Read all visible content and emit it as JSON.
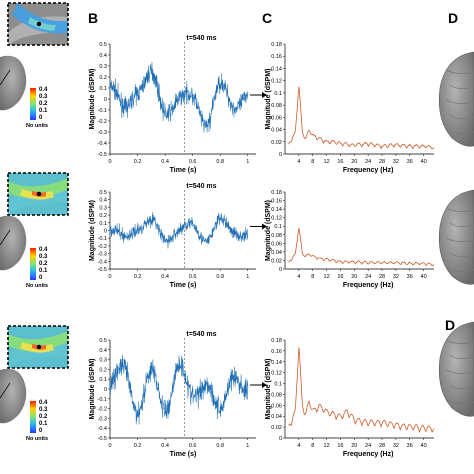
{
  "panel_labels": {
    "B": "B",
    "C": "C",
    "D": "D"
  },
  "colorbar": {
    "ticks": [
      "0.4",
      "0.3",
      "0.2",
      "0.1",
      "0"
    ],
    "units": "No units"
  },
  "time_plots": {
    "ylabel": "Magnitude (dSPM)",
    "xlabel": "Time (s)",
    "xticks": [
      "0",
      "0.2",
      "0.4",
      "0.6",
      "0.8",
      "1"
    ],
    "yticks": [
      "0.5",
      "0.4",
      "0.3",
      "0.2",
      "0.1",
      "0",
      "-0.1",
      "-0.2",
      "-0.3",
      "-0.4",
      "-0.5"
    ],
    "marker_label": "t=540 ms",
    "line_color": "#1f6fb4"
  },
  "freq_plots": {
    "ylabel": "Magnitude (dSPM)",
    "xlabel": "Frequency (Hz)",
    "xticks": [
      "4",
      "8",
      "12",
      "16",
      "20",
      "24",
      "28",
      "32",
      "36",
      "40"
    ],
    "yticks": [
      "0.18",
      "0.16",
      "0.14",
      "0.12",
      "0.1",
      "0.08",
      "0.06",
      "0.04",
      "0.02",
      "0"
    ],
    "line_color": "#c8531d"
  },
  "chart_data": [
    {
      "type": "line",
      "xlabel": "Time (s)",
      "ylabel": "Magnitude (dSPM)",
      "xlim": [
        0,
        1.06
      ],
      "ylim": [
        -0.5,
        0.5
      ],
      "annotation": "t=540 ms",
      "marker_x": 0.54,
      "series": [
        {
          "x": [
            0,
            0.1,
            0.2,
            0.3,
            0.4,
            0.5,
            0.6,
            0.7,
            0.8,
            0.9,
            1.0
          ],
          "values": [
            0.1,
            -0.1,
            0.1,
            0.2,
            -0.1,
            0.0,
            0.0,
            -0.2,
            0.1,
            -0.05,
            0.05
          ]
        }
      ]
    },
    {
      "type": "line",
      "xlabel": "Frequency (Hz)",
      "ylabel": "Magnitude (dSPM)",
      "xlim": [
        0,
        43
      ],
      "ylim": [
        0,
        0.18
      ],
      "series": [
        {
          "x": [
            1,
            3,
            4,
            5,
            6,
            7,
            8,
            10,
            12,
            14,
            16,
            20,
            24,
            28,
            32,
            36,
            40,
            43
          ],
          "values": [
            0.01,
            0.03,
            0.11,
            0.03,
            0.02,
            0.035,
            0.025,
            0.02,
            0.015,
            0.015,
            0.012,
            0.01,
            0.012,
            0.008,
            0.01,
            0.008,
            0.008,
            0.006
          ]
        }
      ]
    },
    {
      "type": "line",
      "xlabel": "Time (s)",
      "ylabel": "Magnitude (dSPM)",
      "xlim": [
        0,
        1.06
      ],
      "ylim": [
        -0.5,
        0.5
      ],
      "annotation": "t=540 ms",
      "marker_x": 0.54,
      "series": [
        {
          "x": [
            0,
            0.1,
            0.2,
            0.3,
            0.4,
            0.5,
            0.6,
            0.7,
            0.8,
            0.9,
            1.0
          ],
          "values": [
            0.0,
            -0.1,
            0.05,
            0.1,
            -0.1,
            0.0,
            0.05,
            -0.1,
            0.1,
            0.0,
            -0.05
          ]
        }
      ]
    },
    {
      "type": "line",
      "xlabel": "Frequency (Hz)",
      "ylabel": "Magnitude (dSPM)",
      "xlim": [
        0,
        43
      ],
      "ylim": [
        0,
        0.18
      ],
      "series": [
        {
          "x": [
            1,
            3,
            4,
            5,
            6,
            7,
            8,
            10,
            12,
            14,
            16,
            20,
            24,
            28,
            32,
            36,
            40,
            43
          ],
          "values": [
            0.01,
            0.03,
            0.095,
            0.03,
            0.025,
            0.03,
            0.025,
            0.02,
            0.018,
            0.015,
            0.012,
            0.012,
            0.01,
            0.01,
            0.01,
            0.008,
            0.008,
            0.006
          ]
        }
      ]
    },
    {
      "type": "line",
      "xlabel": "Time (s)",
      "ylabel": "Magnitude (dSPM)",
      "xlim": [
        0,
        1.06
      ],
      "ylim": [
        -0.5,
        0.5
      ],
      "annotation": "t=540 ms",
      "marker_x": 0.54,
      "series": [
        {
          "x": [
            0,
            0.1,
            0.2,
            0.3,
            0.4,
            0.5,
            0.6,
            0.7,
            0.8,
            0.9,
            1.0
          ],
          "values": [
            0.05,
            0.2,
            -0.2,
            0.15,
            -0.2,
            0.25,
            -0.1,
            0.1,
            -0.25,
            0.15,
            0.0
          ]
        }
      ]
    },
    {
      "type": "line",
      "xlabel": "Frequency (Hz)",
      "ylabel": "Magnitude (dSPM)",
      "xlim": [
        0,
        43
      ],
      "ylim": [
        0,
        0.18
      ],
      "series": [
        {
          "x": [
            1,
            3,
            4,
            5,
            6,
            7,
            8,
            10,
            12,
            14,
            16,
            18,
            20,
            24,
            28,
            32,
            36,
            40,
            43
          ],
          "values": [
            0.01,
            0.04,
            0.165,
            0.05,
            0.035,
            0.06,
            0.04,
            0.05,
            0.04,
            0.035,
            0.03,
            0.04,
            0.025,
            0.02,
            0.02,
            0.015,
            0.012,
            0.01,
            0.008
          ]
        }
      ]
    }
  ]
}
